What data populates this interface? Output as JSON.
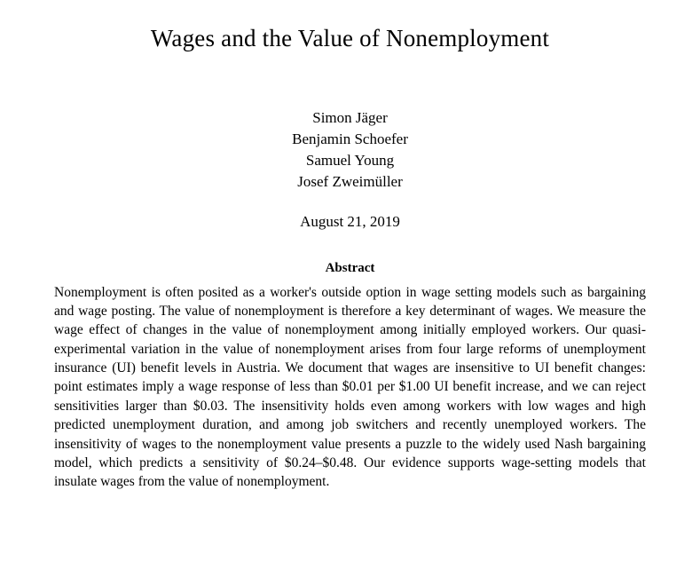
{
  "title": "Wages and the Value of Nonemployment",
  "authors": [
    "Simon Jäger",
    "Benjamin Schoefer",
    "Samuel Young",
    "Josef Zweimüller"
  ],
  "date": "August 21, 2019",
  "abstract_label": "Abstract",
  "abstract_body": "Nonemployment is often posited as a worker's outside option in wage setting models such as bargaining and wage posting. The value of nonemployment is therefore a key determinant of wages. We measure the wage effect of changes in the value of nonemployment among initially employed workers. Our quasi-experimental variation in the value of nonemployment arises from four large reforms of unemployment insurance (UI) benefit levels in Austria. We document that wages are insensitive to UI benefit changes: point estimates imply a wage response of less than $0.01 per $1.00 UI benefit increase, and we can reject sensitivities larger than $0.03. The insensitivity holds even among workers with low wages and high predicted unemployment duration, and among job switchers and recently unemployed workers. The insensitivity of wages to the nonemployment value presents a puzzle to the widely used Nash bargaining model, which predicts a sensitivity of $0.24–$0.48. Our evidence supports wage-setting models that insulate wages from the value of nonemployment.",
  "style": {
    "background_color": "#ffffff",
    "text_color": "#000000",
    "title_fontsize": 27,
    "author_fontsize": 17,
    "date_fontsize": 17,
    "abstract_heading_fontsize": 15,
    "abstract_body_fontsize": 15.5,
    "font_family": "Computer Modern / Latin Modern serif"
  }
}
